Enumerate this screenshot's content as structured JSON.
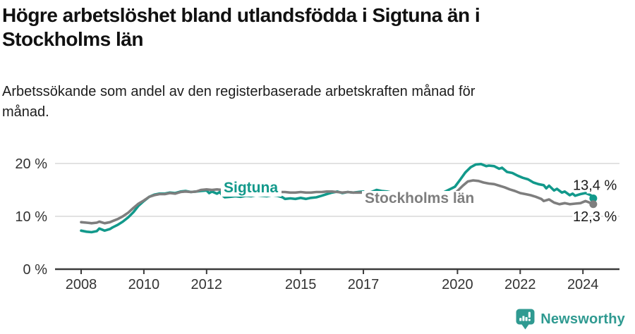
{
  "header": {
    "title_lines": [
      "Högre arbetslöshet bland utlandsfödda i Sigtuna än i",
      "Stockholms län"
    ],
    "subtitle_lines": [
      "Arbetssökande som andel av den registerbaserade arbetskraften månad för",
      "månad."
    ]
  },
  "footer": {
    "brand": "Newsworthy"
  },
  "colors": {
    "sigtuna": "#12998b",
    "stockholm": "#7e7e7e",
    "grid": "#e2e2e2",
    "axis": "#3a3a3a",
    "tick_text": "#333333",
    "value_text": "#1a1a1a",
    "brand": "#2f9a91",
    "background": "#ffffff"
  },
  "chart_data": {
    "type": "line",
    "title": "Högre arbetslöshet bland utlandsfödda i Sigtuna än i Stockholms län",
    "subtitle": "Arbetssökande som andel av den registerbaserade arbetskraften månad för månad.",
    "xlabel": "",
    "ylabel": "",
    "grid": "horizontal",
    "legend_position": "inline-labels",
    "xlim": [
      2007.5,
      2025.2
    ],
    "ylim": [
      0,
      22
    ],
    "y_ticks": [
      0,
      10,
      20
    ],
    "y_tick_labels": [
      "0 %",
      "10 %",
      "20 %"
    ],
    "x_ticks": [
      2008,
      2010,
      2012,
      2015,
      2017,
      2020,
      2022,
      2024
    ],
    "x_tick_labels": [
      "2008",
      "2010",
      "2012",
      "2015",
      "2017",
      "2020",
      "2022",
      "2024"
    ],
    "series": [
      {
        "name": "Sigtuna",
        "end_label": "13,4 %",
        "end_value": 13.4,
        "points": [
          [
            2008.0,
            7.3
          ],
          [
            2008.17,
            7.1
          ],
          [
            2008.33,
            7.0
          ],
          [
            2008.5,
            7.2
          ],
          [
            2008.58,
            7.7
          ],
          [
            2008.75,
            7.3
          ],
          [
            2008.92,
            7.6
          ],
          [
            2009.0,
            7.9
          ],
          [
            2009.17,
            8.4
          ],
          [
            2009.33,
            9.0
          ],
          [
            2009.5,
            9.8
          ],
          [
            2009.67,
            10.8
          ],
          [
            2009.83,
            12.0
          ],
          [
            2010.0,
            12.9
          ],
          [
            2010.17,
            13.7
          ],
          [
            2010.33,
            14.1
          ],
          [
            2010.5,
            14.3
          ],
          [
            2010.67,
            14.3
          ],
          [
            2010.83,
            14.5
          ],
          [
            2011.0,
            14.4
          ],
          [
            2011.17,
            14.7
          ],
          [
            2011.33,
            14.8
          ],
          [
            2011.5,
            14.6
          ],
          [
            2011.67,
            14.7
          ],
          [
            2011.83,
            14.8
          ],
          [
            2012.0,
            14.9
          ],
          [
            2012.08,
            14.4
          ],
          [
            2012.17,
            14.7
          ],
          [
            2012.33,
            14.3
          ],
          [
            2012.42,
            14.6
          ],
          [
            2012.5,
            14.0
          ],
          [
            2012.58,
            13.6
          ],
          [
            2012.75,
            13.7
          ],
          [
            2012.92,
            13.8
          ],
          [
            2013.08,
            13.7
          ],
          [
            2013.25,
            13.9
          ],
          [
            2013.42,
            13.8
          ],
          [
            2013.58,
            14.0
          ],
          [
            2013.75,
            13.9
          ],
          [
            2013.92,
            13.8
          ],
          [
            2014.08,
            14.0
          ],
          [
            2014.25,
            13.9
          ],
          [
            2014.42,
            13.6
          ],
          [
            2014.5,
            13.3
          ],
          [
            2014.67,
            13.4
          ],
          [
            2014.83,
            13.3
          ],
          [
            2015.0,
            13.5
          ],
          [
            2015.17,
            13.3
          ],
          [
            2015.33,
            13.5
          ],
          [
            2015.5,
            13.6
          ],
          [
            2015.67,
            13.9
          ],
          [
            2015.83,
            14.2
          ],
          [
            2016.0,
            14.5
          ],
          [
            2016.17,
            14.7
          ],
          [
            2016.33,
            14.4
          ],
          [
            2016.5,
            14.6
          ],
          [
            2016.67,
            14.5
          ],
          [
            2016.83,
            14.6
          ],
          [
            2017.0,
            14.7
          ],
          [
            2017.08,
            14.3
          ],
          [
            2017.25,
            14.6
          ],
          [
            2017.42,
            15.0
          ],
          [
            2017.58,
            14.8
          ],
          [
            2017.75,
            14.7
          ],
          [
            2017.92,
            14.5
          ],
          [
            2018.08,
            14.4
          ],
          [
            2018.25,
            14.3
          ],
          [
            2018.42,
            14.2
          ],
          [
            2018.58,
            14.1
          ],
          [
            2018.75,
            14.0
          ],
          [
            2018.92,
            13.9
          ],
          [
            2019.08,
            13.9
          ],
          [
            2019.25,
            14.0
          ],
          [
            2019.42,
            14.2
          ],
          [
            2019.58,
            14.6
          ],
          [
            2019.75,
            15.1
          ],
          [
            2019.92,
            15.6
          ],
          [
            2020.08,
            16.9
          ],
          [
            2020.25,
            18.3
          ],
          [
            2020.42,
            19.3
          ],
          [
            2020.58,
            19.8
          ],
          [
            2020.75,
            19.9
          ],
          [
            2020.92,
            19.5
          ],
          [
            2021.0,
            19.6
          ],
          [
            2021.17,
            19.5
          ],
          [
            2021.33,
            19.0
          ],
          [
            2021.42,
            19.2
          ],
          [
            2021.58,
            18.4
          ],
          [
            2021.75,
            18.2
          ],
          [
            2021.92,
            17.7
          ],
          [
            2022.08,
            17.3
          ],
          [
            2022.25,
            17.0
          ],
          [
            2022.42,
            16.4
          ],
          [
            2022.58,
            16.1
          ],
          [
            2022.75,
            15.9
          ],
          [
            2022.83,
            15.3
          ],
          [
            2022.92,
            15.8
          ],
          [
            2023.08,
            14.9
          ],
          [
            2023.17,
            15.2
          ],
          [
            2023.33,
            14.5
          ],
          [
            2023.42,
            14.7
          ],
          [
            2023.58,
            14.0
          ],
          [
            2023.67,
            14.3
          ],
          [
            2023.75,
            13.9
          ],
          [
            2023.92,
            14.2
          ],
          [
            2024.08,
            14.4
          ],
          [
            2024.25,
            14.0
          ],
          [
            2024.33,
            13.4
          ]
        ]
      },
      {
        "name": "Stockholms län",
        "end_label": "12,3 %",
        "end_value": 12.3,
        "points": [
          [
            2008.0,
            8.9
          ],
          [
            2008.17,
            8.8
          ],
          [
            2008.33,
            8.7
          ],
          [
            2008.5,
            8.8
          ],
          [
            2008.58,
            9.0
          ],
          [
            2008.75,
            8.7
          ],
          [
            2008.92,
            8.9
          ],
          [
            2009.0,
            9.1
          ],
          [
            2009.17,
            9.5
          ],
          [
            2009.33,
            10.0
          ],
          [
            2009.5,
            10.7
          ],
          [
            2009.67,
            11.6
          ],
          [
            2009.83,
            12.4
          ],
          [
            2010.0,
            13.0
          ],
          [
            2010.17,
            13.7
          ],
          [
            2010.33,
            14.0
          ],
          [
            2010.5,
            14.2
          ],
          [
            2010.67,
            14.2
          ],
          [
            2010.83,
            14.4
          ],
          [
            2011.0,
            14.3
          ],
          [
            2011.17,
            14.6
          ],
          [
            2011.33,
            14.7
          ],
          [
            2011.5,
            14.6
          ],
          [
            2011.67,
            14.7
          ],
          [
            2011.83,
            15.0
          ],
          [
            2012.0,
            15.1
          ],
          [
            2012.17,
            15.0
          ],
          [
            2012.33,
            15.1
          ],
          [
            2012.5,
            15.0
          ],
          [
            2012.67,
            15.1
          ],
          [
            2012.83,
            15.0
          ],
          [
            2013.0,
            15.0
          ],
          [
            2013.17,
            14.9
          ],
          [
            2013.33,
            15.0
          ],
          [
            2013.5,
            14.9
          ],
          [
            2013.67,
            14.8
          ],
          [
            2013.83,
            14.8
          ],
          [
            2014.0,
            14.7
          ],
          [
            2014.17,
            14.7
          ],
          [
            2014.33,
            14.6
          ],
          [
            2014.5,
            14.6
          ],
          [
            2014.67,
            14.5
          ],
          [
            2014.83,
            14.5
          ],
          [
            2015.0,
            14.6
          ],
          [
            2015.17,
            14.5
          ],
          [
            2015.33,
            14.5
          ],
          [
            2015.5,
            14.6
          ],
          [
            2015.67,
            14.6
          ],
          [
            2015.83,
            14.7
          ],
          [
            2016.0,
            14.7
          ],
          [
            2016.17,
            14.6
          ],
          [
            2016.33,
            14.5
          ],
          [
            2016.5,
            14.6
          ],
          [
            2016.67,
            14.5
          ],
          [
            2016.83,
            14.5
          ],
          [
            2017.0,
            14.5
          ],
          [
            2017.17,
            14.4
          ],
          [
            2017.33,
            14.3
          ],
          [
            2017.5,
            14.2
          ],
          [
            2017.67,
            14.1
          ],
          [
            2017.83,
            14.0
          ],
          [
            2018.0,
            13.9
          ],
          [
            2018.17,
            13.8
          ],
          [
            2018.33,
            13.7
          ],
          [
            2018.5,
            13.6
          ],
          [
            2018.67,
            13.5
          ],
          [
            2018.83,
            13.4
          ],
          [
            2019.0,
            13.3
          ],
          [
            2019.17,
            13.2
          ],
          [
            2019.33,
            13.2
          ],
          [
            2019.5,
            13.3
          ],
          [
            2019.67,
            13.6
          ],
          [
            2019.83,
            13.9
          ],
          [
            2020.0,
            14.8
          ],
          [
            2020.17,
            15.8
          ],
          [
            2020.33,
            16.6
          ],
          [
            2020.5,
            16.8
          ],
          [
            2020.67,
            16.7
          ],
          [
            2020.83,
            16.4
          ],
          [
            2021.0,
            16.2
          ],
          [
            2021.17,
            16.1
          ],
          [
            2021.33,
            15.8
          ],
          [
            2021.5,
            15.5
          ],
          [
            2021.67,
            15.1
          ],
          [
            2021.83,
            14.8
          ],
          [
            2022.0,
            14.4
          ],
          [
            2022.17,
            14.2
          ],
          [
            2022.33,
            14.0
          ],
          [
            2022.5,
            13.7
          ],
          [
            2022.67,
            13.3
          ],
          [
            2022.75,
            12.9
          ],
          [
            2022.92,
            13.2
          ],
          [
            2023.08,
            12.6
          ],
          [
            2023.25,
            12.3
          ],
          [
            2023.42,
            12.5
          ],
          [
            2023.58,
            12.3
          ],
          [
            2023.75,
            12.4
          ],
          [
            2023.92,
            12.5
          ],
          [
            2024.08,
            12.9
          ],
          [
            2024.17,
            12.7
          ],
          [
            2024.33,
            12.3
          ]
        ]
      }
    ]
  }
}
